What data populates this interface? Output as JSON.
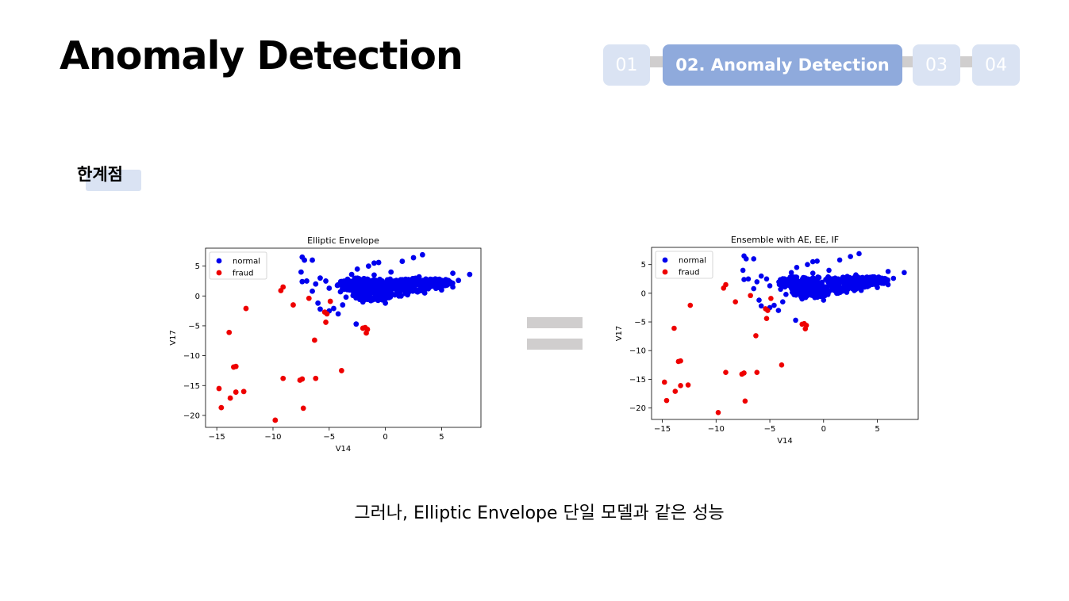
{
  "header": {
    "title": "Anomaly Detection",
    "steps": [
      "01",
      "02. Anomaly Detection",
      "03",
      "04"
    ],
    "active_step": 1
  },
  "section": {
    "label": "한계점"
  },
  "caption": "그러나, Elliptic Envelope 단일 모델과 같은 성능",
  "colors": {
    "normal": "#0000ee",
    "fraud": "#ee0000",
    "nav_active": "#8faadc",
    "nav_inactive": "#dae3f3",
    "connector": "#d0cece"
  },
  "chart_data": [
    {
      "type": "scatter",
      "title": "Elliptic Envelope",
      "xlabel": "V14",
      "ylabel": "V17",
      "xlim": [
        -16,
        8.5
      ],
      "ylim": [
        -22,
        8
      ],
      "xticks": [
        -15,
        -10,
        -5,
        0,
        5
      ],
      "yticks": [
        5,
        0,
        -5,
        -10,
        -15,
        -20
      ],
      "legend": "upper-left",
      "series": [
        {
          "name": "normal",
          "color": "#0000ee",
          "points": [
            [
              -7.4,
              6.5
            ],
            [
              -7.2,
              6.0
            ],
            [
              -6.5,
              6.0
            ],
            [
              -7.5,
              4.0
            ],
            [
              -7.0,
              2.5
            ],
            [
              -7.4,
              2.4
            ],
            [
              -6.2,
              2.0
            ],
            [
              -6.5,
              0.8
            ],
            [
              -5.8,
              3.0
            ],
            [
              -5.3,
              2.5
            ],
            [
              -5.0,
              1.3
            ],
            [
              -6.0,
              -1.2
            ],
            [
              -5.8,
              -2.2
            ],
            [
              -5.0,
              -2.5
            ],
            [
              -4.6,
              -2.1
            ],
            [
              -4.2,
              -3.0
            ],
            [
              -2.6,
              -4.7
            ],
            [
              -3.8,
              -1.5
            ],
            [
              -3.5,
              -0.2
            ],
            [
              -4.0,
              0.7
            ],
            [
              -3.2,
              1.8
            ],
            [
              -3.0,
              3.6
            ],
            [
              -2.5,
              4.5
            ],
            [
              -1.5,
              5.0
            ],
            [
              -1.0,
              5.5
            ],
            [
              -0.6,
              5.6
            ],
            [
              -2.5,
              2.8
            ],
            [
              -1.0,
              3.5
            ],
            [
              0.5,
              4.0
            ],
            [
              1.5,
              5.8
            ],
            [
              2.5,
              6.4
            ],
            [
              3.3,
              6.9
            ],
            [
              3.0,
              3.2
            ],
            [
              4.0,
              2.8
            ],
            [
              5.0,
              2.6
            ],
            [
              6.0,
              3.8
            ],
            [
              6.5,
              2.6
            ],
            [
              7.5,
              3.6
            ],
            [
              6.0,
              1.5
            ],
            [
              5.0,
              1.0
            ],
            [
              -2.0,
              -1.0
            ],
            [
              -0.5,
              -0.5
            ],
            [
              1.0,
              0.5
            ],
            [
              2.5,
              1.5
            ],
            [
              3.5,
              0.5
            ],
            [
              -1.0,
              1.8
            ],
            [
              0.2,
              2.4
            ],
            [
              1.8,
              2.8
            ],
            [
              -2.8,
              0.2
            ],
            [
              0.0,
              -1.2
            ]
          ],
          "clusters": [
            {
              "cx": -2.3,
              "cy": 1.8,
              "rx": 2.0,
              "ry": 1.2
            },
            {
              "cx": 0.4,
              "cy": 1.4,
              "rx": 3.2,
              "ry": 1.5
            },
            {
              "cx": 2.6,
              "cy": 1.9,
              "rx": 2.4,
              "ry": 1.1
            },
            {
              "cx": -1.2,
              "cy": 0.2,
              "rx": 1.8,
              "ry": 1.0
            },
            {
              "cx": 4.6,
              "cy": 2.2,
              "rx": 1.4,
              "ry": 0.7
            }
          ]
        },
        {
          "name": "fraud",
          "color": "#ee0000",
          "points": [
            [
              -14.8,
              -15.5
            ],
            [
              -14.6,
              -18.7
            ],
            [
              -13.9,
              -6.1
            ],
            [
              -13.8,
              -17.1
            ],
            [
              -13.5,
              -11.9
            ],
            [
              -13.3,
              -11.8
            ],
            [
              -13.3,
              -16.1
            ],
            [
              -12.6,
              -16.0
            ],
            [
              -12.4,
              -2.1
            ],
            [
              -9.8,
              -20.8
            ],
            [
              -9.3,
              0.9
            ],
            [
              -9.1,
              1.5
            ],
            [
              -9.1,
              -13.8
            ],
            [
              -8.2,
              -1.5
            ],
            [
              -7.6,
              -14.1
            ],
            [
              -7.4,
              -13.9
            ],
            [
              -7.3,
              -18.8
            ],
            [
              -6.8,
              -0.4
            ],
            [
              -6.3,
              -7.4
            ],
            [
              -6.2,
              -13.8
            ],
            [
              -5.4,
              -2.7
            ],
            [
              -5.3,
              -4.4
            ],
            [
              -5.2,
              -3.0
            ],
            [
              -4.9,
              -0.9
            ],
            [
              -3.9,
              -12.5
            ],
            [
              -2.0,
              -5.4
            ],
            [
              -1.8,
              -5.3
            ],
            [
              -1.6,
              -5.6
            ],
            [
              -1.7,
              -6.2
            ]
          ]
        }
      ]
    },
    {
      "type": "scatter",
      "title": "Ensemble with AE, EE, IF",
      "xlabel": "V14",
      "ylabel": "V17",
      "xlim": [
        -16,
        8.8
      ],
      "ylim": [
        -22,
        8
      ],
      "xticks": [
        -15,
        -10,
        -5,
        0,
        5
      ],
      "yticks": [
        5,
        0,
        -5,
        -10,
        -15,
        -20
      ],
      "legend": "upper-left",
      "series": [
        {
          "name": "normal",
          "color": "#0000ee",
          "points": [
            [
              -7.4,
              6.5
            ],
            [
              -7.2,
              6.0
            ],
            [
              -6.5,
              6.0
            ],
            [
              -7.5,
              4.0
            ],
            [
              -7.0,
              2.5
            ],
            [
              -7.4,
              2.4
            ],
            [
              -6.2,
              2.0
            ],
            [
              -6.5,
              0.8
            ],
            [
              -5.8,
              3.0
            ],
            [
              -5.3,
              2.5
            ],
            [
              -5.0,
              1.3
            ],
            [
              -6.0,
              -1.2
            ],
            [
              -5.8,
              -2.2
            ],
            [
              -5.0,
              -2.5
            ],
            [
              -4.6,
              -2.1
            ],
            [
              -4.2,
              -3.0
            ],
            [
              -2.6,
              -4.7
            ],
            [
              -3.8,
              -1.5
            ],
            [
              -3.5,
              -0.2
            ],
            [
              -4.0,
              0.7
            ],
            [
              -3.2,
              1.8
            ],
            [
              -3.0,
              3.6
            ],
            [
              -2.5,
              4.5
            ],
            [
              -1.5,
              5.0
            ],
            [
              -1.0,
              5.5
            ],
            [
              -0.6,
              5.6
            ],
            [
              -2.5,
              2.8
            ],
            [
              -1.0,
              3.5
            ],
            [
              0.5,
              4.0
            ],
            [
              1.5,
              5.8
            ],
            [
              2.5,
              6.4
            ],
            [
              3.3,
              6.9
            ],
            [
              3.0,
              3.2
            ],
            [
              4.0,
              2.8
            ],
            [
              5.0,
              2.6
            ],
            [
              6.0,
              3.8
            ],
            [
              6.5,
              2.6
            ],
            [
              7.5,
              3.6
            ],
            [
              6.0,
              1.5
            ],
            [
              5.0,
              1.0
            ],
            [
              -2.0,
              -1.0
            ],
            [
              -0.5,
              -0.5
            ],
            [
              1.0,
              0.5
            ],
            [
              2.5,
              1.5
            ],
            [
              3.5,
              0.5
            ],
            [
              -1.0,
              1.8
            ],
            [
              0.2,
              2.4
            ],
            [
              1.8,
              2.8
            ],
            [
              -2.8,
              0.2
            ],
            [
              0.0,
              -1.2
            ]
          ],
          "clusters": [
            {
              "cx": -2.3,
              "cy": 1.8,
              "rx": 2.0,
              "ry": 1.2
            },
            {
              "cx": 0.4,
              "cy": 1.4,
              "rx": 3.2,
              "ry": 1.5
            },
            {
              "cx": 2.6,
              "cy": 1.9,
              "rx": 2.4,
              "ry": 1.1
            },
            {
              "cx": -1.2,
              "cy": 0.2,
              "rx": 1.8,
              "ry": 1.0
            },
            {
              "cx": 4.6,
              "cy": 2.2,
              "rx": 1.4,
              "ry": 0.7
            }
          ]
        },
        {
          "name": "fraud",
          "color": "#ee0000",
          "points": [
            [
              -14.8,
              -15.5
            ],
            [
              -14.6,
              -18.7
            ],
            [
              -13.9,
              -6.1
            ],
            [
              -13.8,
              -17.1
            ],
            [
              -13.5,
              -11.9
            ],
            [
              -13.3,
              -11.8
            ],
            [
              -13.3,
              -16.1
            ],
            [
              -12.6,
              -16.0
            ],
            [
              -12.4,
              -2.1
            ],
            [
              -9.8,
              -20.8
            ],
            [
              -9.3,
              0.9
            ],
            [
              -9.1,
              1.5
            ],
            [
              -9.1,
              -13.8
            ],
            [
              -8.2,
              -1.5
            ],
            [
              -7.6,
              -14.1
            ],
            [
              -7.4,
              -13.9
            ],
            [
              -7.3,
              -18.8
            ],
            [
              -6.8,
              -0.4
            ],
            [
              -6.3,
              -7.4
            ],
            [
              -6.2,
              -13.8
            ],
            [
              -5.4,
              -2.7
            ],
            [
              -5.3,
              -4.4
            ],
            [
              -5.2,
              -3.0
            ],
            [
              -4.9,
              -0.9
            ],
            [
              -3.9,
              -12.5
            ],
            [
              -2.0,
              -5.4
            ],
            [
              -1.8,
              -5.3
            ],
            [
              -1.6,
              -5.6
            ],
            [
              -1.7,
              -6.2
            ]
          ]
        }
      ]
    }
  ]
}
